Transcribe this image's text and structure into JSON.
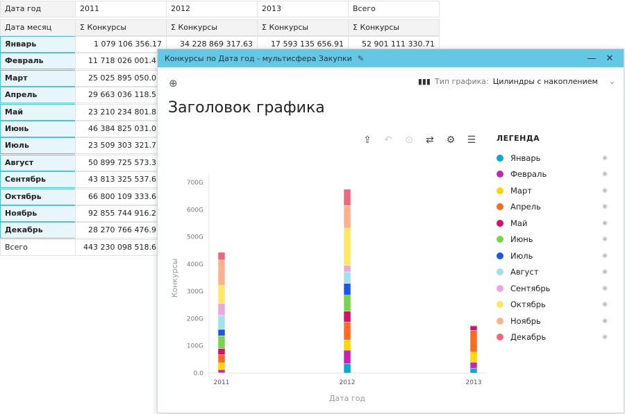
{
  "table": {
    "corner_row1": "Дата год",
    "corner_row2": "Дата месяц",
    "years": [
      "2011",
      "2012",
      "2013",
      "Всего"
    ],
    "measure": "Σ Конкурсы",
    "rows": [
      {
        "label": "Январь",
        "values": [
          "1 079 106 356.17",
          "34 228 869 317.63",
          "17 593 135 656.91",
          "52 901 111 330.71"
        ]
      },
      {
        "label": "Февраль",
        "values": [
          "11 718 026 001.4"
        ]
      },
      {
        "label": "Март",
        "values": [
          "25 025 895 050.0"
        ]
      },
      {
        "label": "Апрель",
        "values": [
          "29 663 036 118.5"
        ]
      },
      {
        "label": "Май",
        "values": [
          "23 210 234 801.8"
        ]
      },
      {
        "label": "Июнь",
        "values": [
          "46 384 825 031.0"
        ]
      },
      {
        "label": "Июль",
        "values": [
          "23 509 303 321.7"
        ]
      },
      {
        "label": "Август",
        "values": [
          "50 899 725 573.3"
        ]
      },
      {
        "label": "Сентябрь",
        "values": [
          "43 813 325 537.6"
        ]
      },
      {
        "label": "Октябрь",
        "values": [
          "66 800 109 333.6"
        ]
      },
      {
        "label": "Ноябрь",
        "values": [
          "92 855 744 916.2"
        ]
      },
      {
        "label": "Декабрь",
        "values": [
          "28 270 766 476.9"
        ]
      }
    ],
    "total": {
      "label": "Всего",
      "values": [
        "443 230 098 518.6"
      ]
    }
  },
  "window": {
    "title": "Конкурсы по Дата год - мультисфера Закупки",
    "minimize": "—",
    "close": "✕"
  },
  "chart_header": {
    "title": "Заголовок графика",
    "type_label": "Тип графика:",
    "type_value": "Цилиндры с накоплением"
  },
  "legend": {
    "title": "ЛЕГЕНДА"
  },
  "chart_data": {
    "type": "bar",
    "stacked": true,
    "xlabel": "Дата год",
    "ylabel": "Конкурсы",
    "categories": [
      "2011",
      "2012",
      "2013"
    ],
    "ylim": [
      0,
      700
    ],
    "yticks": [
      "0.0",
      "100G",
      "200G",
      "300G",
      "400G",
      "500G",
      "600G",
      "700G"
    ],
    "unit": "G",
    "legend_position": "right",
    "series": [
      {
        "name": "Январь",
        "color": "#00acd7",
        "values": [
          1.08,
          34.23,
          17.59
        ]
      },
      {
        "name": "Февраль",
        "color": "#c724b1",
        "values": [
          11.72,
          50,
          22.3
        ]
      },
      {
        "name": "Март",
        "color": "#ffd600",
        "values": [
          25.03,
          37.3,
          37.3
        ]
      },
      {
        "name": "Апрель",
        "color": "#ff6a21",
        "values": [
          29.66,
          66,
          79
        ]
      },
      {
        "name": "Май",
        "color": "#d90f6a",
        "values": [
          23.21,
          40,
          17
        ]
      },
      {
        "name": "Июнь",
        "color": "#76d54a",
        "values": [
          46.38,
          58.5,
          2.5
        ]
      },
      {
        "name": "Июль",
        "color": "#1a55ee",
        "values": [
          23.51,
          43,
          0
        ]
      },
      {
        "name": "Август",
        "color": "#9ee1f0",
        "values": [
          50.9,
          42.4,
          0
        ]
      },
      {
        "name": "Сентябрь",
        "color": "#eaa6df",
        "values": [
          43.81,
          23.8,
          0
        ]
      },
      {
        "name": "Октябрь",
        "color": "#ffe766",
        "values": [
          66.8,
          136.6,
          0
        ]
      },
      {
        "name": "Ноябрь",
        "color": "#ffb08c",
        "values": [
          92.86,
          83,
          0
        ]
      },
      {
        "name": "Декабрь",
        "color": "#f0667e",
        "values": [
          28.27,
          60,
          0
        ]
      }
    ]
  }
}
